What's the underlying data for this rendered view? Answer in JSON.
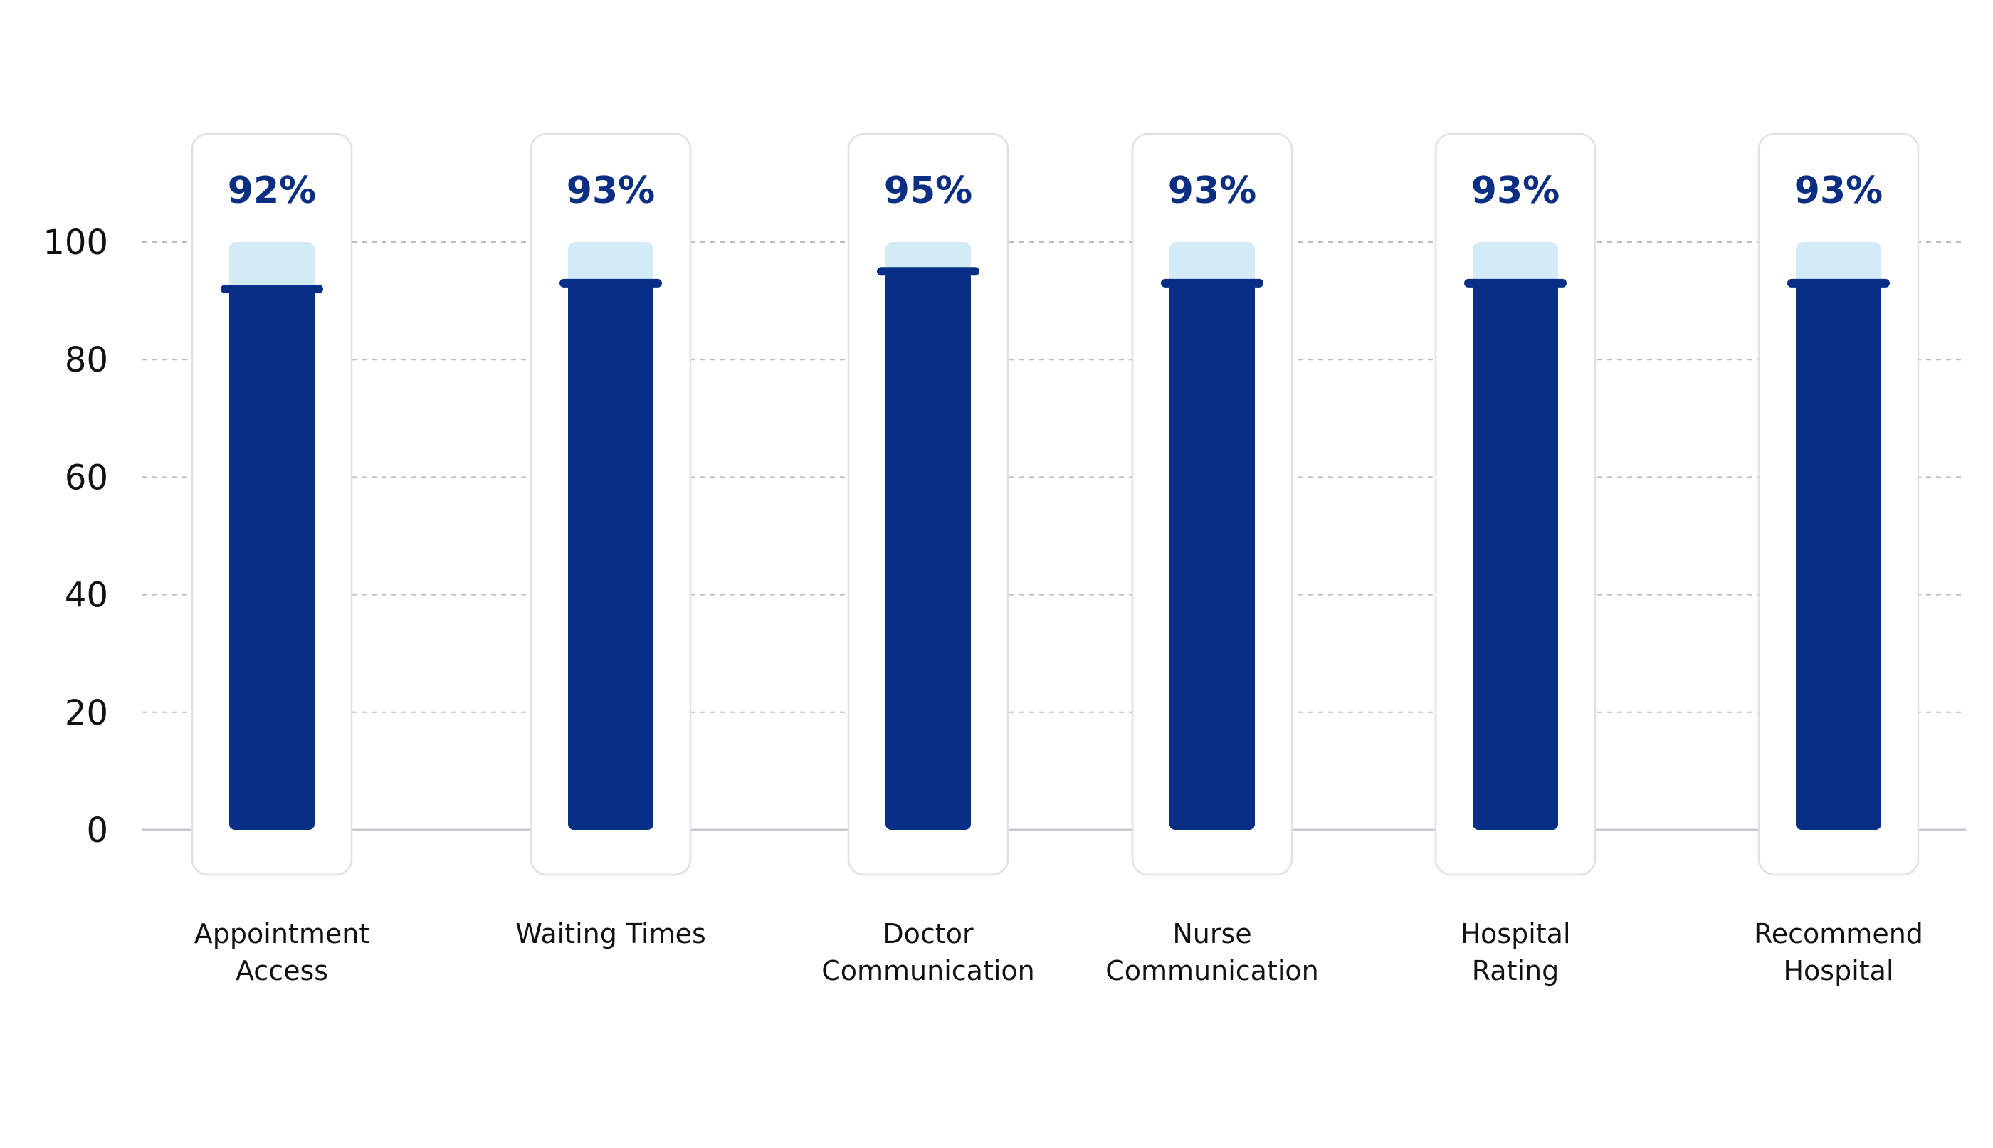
{
  "chart_data": {
    "type": "bar",
    "categories": [
      [
        "Appointment",
        "Access"
      ],
      [
        "Waiting Times"
      ],
      [
        "Doctor",
        "Communication"
      ],
      [
        "Nurse",
        "Communication"
      ],
      [
        "Hospital",
        "Rating"
      ],
      [
        "Recommend",
        "Hospital"
      ]
    ],
    "values": [
      92,
      93,
      95,
      93,
      93,
      93
    ],
    "value_labels": [
      "92%",
      "93%",
      "95%",
      "93%",
      "93%",
      "93%"
    ],
    "yticks": [
      "0",
      "20",
      "40",
      "60",
      "80",
      "100"
    ],
    "ylim": [
      0,
      100
    ],
    "track_max": 100,
    "grid": true,
    "colors": {
      "bar": "#082f85",
      "track": "#d2ebf7",
      "value_text": "#0a2e82",
      "card_border": "#dfe1ea",
      "gridline": "#b9bcc8"
    }
  }
}
